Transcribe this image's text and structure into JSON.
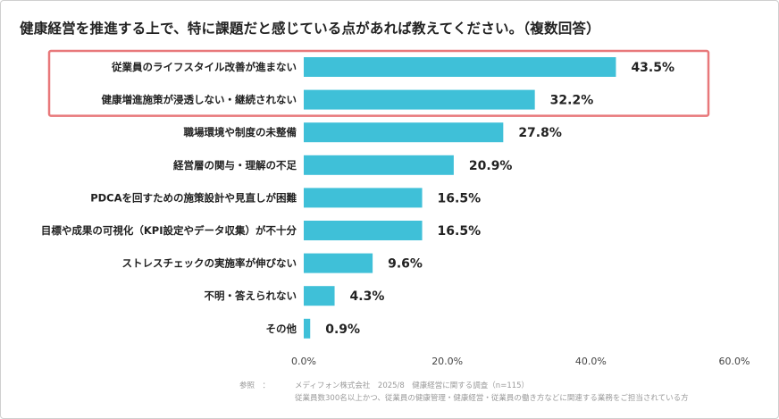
{
  "title": "健康経営を推進する上で、特に課題だと感じている点があれば教えてください。（複数回答）",
  "colors": {
    "bar": "#3fc0d8",
    "highlight": "#e8787a",
    "text": "#222222"
  },
  "chart_data": {
    "type": "bar",
    "orientation": "horizontal",
    "categories": [
      "従業員のライフスタイル改善が進まない",
      "健康増進施策が浸透しない・継続されない",
      "職場環境や制度の未整備",
      "経営層の関与・理解の不足",
      "PDCAを回すための施策設計や見直しが困難",
      "目標や成果の可視化（KPI設定やデータ収集）が不十分",
      "ストレスチェックの実施率が伸びない",
      "不明・答えられない",
      "その他"
    ],
    "values": [
      43.5,
      32.2,
      27.8,
      20.9,
      16.5,
      16.5,
      9.6,
      4.3,
      0.9
    ],
    "value_labels": [
      "43.5%",
      "32.2%",
      "27.8%",
      "20.9%",
      "16.5%",
      "16.5%",
      "9.6%",
      "4.3%",
      "0.9%"
    ],
    "xlim": [
      0,
      60
    ],
    "xticks": [
      "0.0%",
      "20.0%",
      "40.0%",
      "60.0%"
    ],
    "grid": false,
    "highlighted_categories": [
      0,
      1
    ]
  },
  "source": {
    "label": "参照　：",
    "line1": "メディフォン株式会社　2025/8　健康経営に関する調査（n=115）",
    "line2": "従業員数300名以上かつ、従業員の健康管理・健康経営・従業員の働き方などに関連する業務をご担当されている方"
  }
}
